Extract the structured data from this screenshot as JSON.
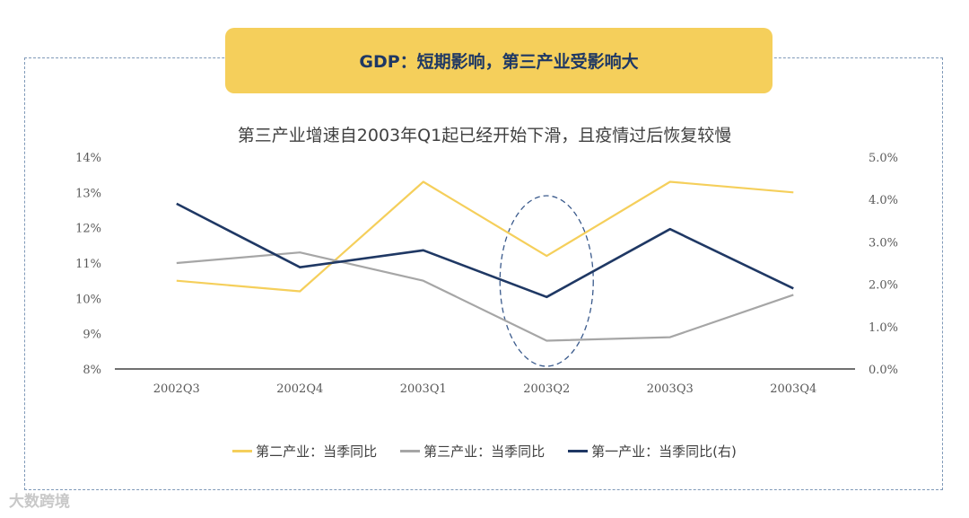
{
  "banner": {
    "title": "GDP：短期影响，第三产业受影响大"
  },
  "watermark": {
    "text": "大数跨境"
  },
  "chart_data": {
    "type": "line",
    "title": "第三产业增速自2003年Q1起已经开始下滑，且疫情过后恢复较慢",
    "categories": [
      "2002Q3",
      "2002Q4",
      "2003Q1",
      "2003Q2",
      "2003Q3",
      "2003Q4"
    ],
    "left_axis": {
      "min": 8,
      "max": 14,
      "step": 1,
      "ticks": [
        "14%",
        "13%",
        "12%",
        "11%",
        "10%",
        "9%",
        "8%"
      ]
    },
    "right_axis": {
      "min": 0,
      "max": 5,
      "step": 1,
      "ticks": [
        "5.0%",
        "4.0%",
        "3.0%",
        "2.0%",
        "1.0%",
        "0.0%"
      ]
    },
    "grid": false,
    "legend_position": "bottom",
    "highlight_category": "2003Q2",
    "series": [
      {
        "name": "第二产业：当季同比",
        "axis": "left",
        "color": "#f5cf5b",
        "values": [
          10.5,
          10.2,
          13.3,
          11.2,
          13.3,
          13.0
        ]
      },
      {
        "name": "第三产业：当季同比",
        "axis": "left",
        "color": "#a6a6a6",
        "values": [
          11.0,
          11.3,
          10.5,
          8.8,
          8.9,
          10.1
        ]
      },
      {
        "name": "第一产业：当季同比(右)",
        "axis": "right",
        "color": "#1f3864",
        "values": [
          3.9,
          2.4,
          2.8,
          1.7,
          3.3,
          1.9
        ]
      }
    ]
  }
}
